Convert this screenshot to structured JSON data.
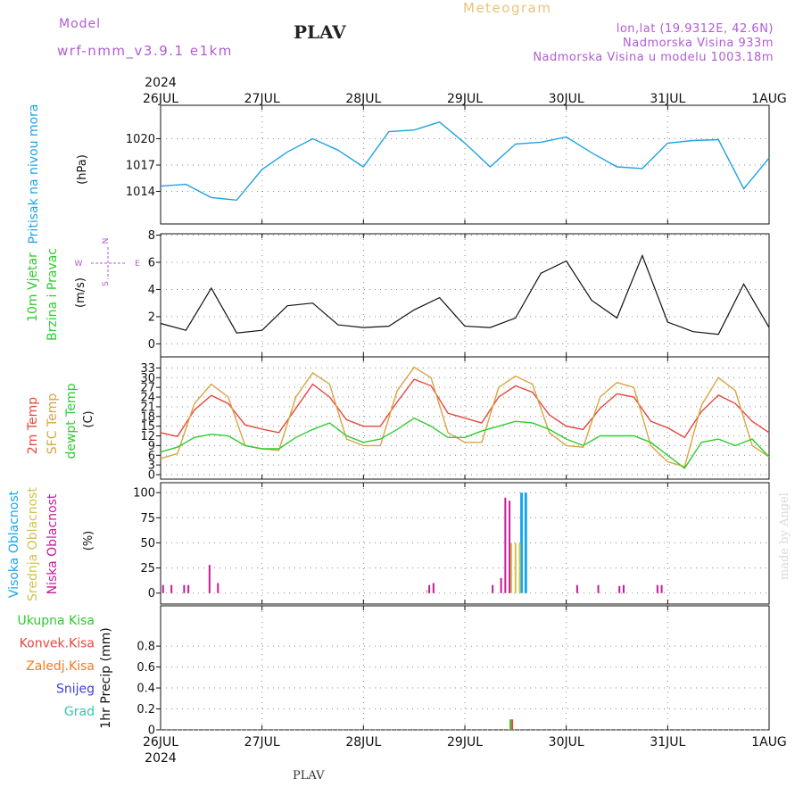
{
  "header": {
    "model_label": "Model",
    "model_name": "wrf-nmm_v3.9.1  e1km",
    "station": "PLAV",
    "title": "Meteogram",
    "location": "lon,lat (19.9312E, 42.6N)",
    "elevation": "Nadmorska Visina 933m",
    "model_elevation": "Nadmorska Visina u modelu 1003.18m"
  },
  "footer": {
    "station": "PLAV",
    "credit": "made by Angel"
  },
  "colors": {
    "pressure": "#1fa3e0",
    "temp2m": "#e8463c",
    "sfc_temp": "#d9a441",
    "dewpoint": "#2ecc2e",
    "high_cloud": "#1aa6ea",
    "mid_cloud": "#cfc54a",
    "low_cloud": "#c8199a",
    "total_precip": "#2ecc2e",
    "conv_precip": "#e8463c",
    "frozen_precip": "#f07a2a",
    "snow": "#3d3dd8",
    "hail": "#2ec8b0",
    "wind_speed": "#111111",
    "accent": "#b25bd6"
  },
  "chart_data": {
    "type": "line",
    "x_axis": {
      "start": "2024-07-26T00",
      "end": "2024-08-01T00",
      "ticks": [
        "26JUL",
        "27JUL",
        "28JUL",
        "29JUL",
        "30JUL",
        "31JUL",
        "1AUG"
      ],
      "year_label": "2024"
    },
    "panels": [
      {
        "name": "pressure",
        "ylabel": [
          "Pritisak na nivou mora",
          "(hPa)"
        ],
        "ylim": [
          1011,
          1023
        ],
        "yticks": [
          1014,
          1017,
          1020
        ],
        "grid": true,
        "series": [
          {
            "name": "Pritisak na nivou mora",
            "color": "#1fa3e0",
            "x": [
              "2024-07-26T00",
              "2024-07-26T06",
              "2024-07-26T12",
              "2024-07-26T18",
              "2024-07-27T00",
              "2024-07-27T06",
              "2024-07-27T12",
              "2024-07-27T18",
              "2024-07-28T00",
              "2024-07-28T06",
              "2024-07-28T12",
              "2024-07-28T18",
              "2024-07-29T00",
              "2024-07-29T06",
              "2024-07-29T12",
              "2024-07-29T18",
              "2024-07-30T00",
              "2024-07-30T06",
              "2024-07-30T12",
              "2024-07-30T18",
              "2024-07-31T00",
              "2024-07-31T06",
              "2024-07-31T12",
              "2024-07-31T18",
              "2024-08-01T00"
            ],
            "values": [
              1014.6,
              1014.8,
              1013.3,
              1013.0,
              1016.5,
              1018.5,
              1020.0,
              1018.7,
              1016.8,
              1020.8,
              1021.0,
              1021.9,
              1019.5,
              1016.8,
              1019.4,
              1019.6,
              1020.2,
              1018.4,
              1016.8,
              1016.6,
              1019.5,
              1019.8,
              1019.9,
              1014.3,
              1017.8
            ]
          }
        ]
      },
      {
        "name": "wind",
        "ylabel": [
          "10m Vjetar",
          "Brzina i Pravac",
          "(m/s)"
        ],
        "compass": [
          "N",
          "W",
          "E",
          "S"
        ],
        "ylim": [
          -0.5,
          8.1
        ],
        "yticks": [
          0,
          2,
          4,
          6,
          8
        ],
        "grid": true,
        "series": [
          {
            "name": "Brzina",
            "color": "#111111",
            "x": [
              "2024-07-26T00",
              "2024-07-26T06",
              "2024-07-26T12",
              "2024-07-26T18",
              "2024-07-27T00",
              "2024-07-27T06",
              "2024-07-27T12",
              "2024-07-27T18",
              "2024-07-28T00",
              "2024-07-28T06",
              "2024-07-28T12",
              "2024-07-28T18",
              "2024-07-29T00",
              "2024-07-29T06",
              "2024-07-29T12",
              "2024-07-29T18",
              "2024-07-30T00",
              "2024-07-30T06",
              "2024-07-30T12",
              "2024-07-30T18",
              "2024-07-31T00",
              "2024-07-31T06",
              "2024-07-31T12",
              "2024-07-31T18",
              "2024-08-01T00"
            ],
            "values": [
              1.5,
              1.0,
              4.1,
              0.8,
              1.0,
              2.8,
              3.0,
              1.4,
              1.2,
              1.3,
              2.5,
              3.4,
              1.3,
              1.2,
              1.9,
              5.2,
              6.1,
              3.2,
              1.9,
              6.5,
              1.6,
              0.9,
              0.7,
              4.4,
              1.2
            ]
          }
        ]
      },
      {
        "name": "temperature",
        "ylabel": [
          "2m Temp",
          "SFC Temp",
          "dewpt Temp",
          "(C)"
        ],
        "ylim": [
          0,
          34.5
        ],
        "yticks": [
          0,
          3,
          6,
          9,
          12,
          15,
          18,
          21,
          24,
          27,
          30,
          33
        ],
        "grid": true,
        "series": [
          {
            "name": "2m Temp",
            "color": "#e8463c",
            "x": [
              "2024-07-26T00",
              "2024-07-26T04",
              "2024-07-26T08",
              "2024-07-26T12",
              "2024-07-26T16",
              "2024-07-26T20",
              "2024-07-27T00",
              "2024-07-27T04",
              "2024-07-27T08",
              "2024-07-27T12",
              "2024-07-27T16",
              "2024-07-27T20",
              "2024-07-28T00",
              "2024-07-28T04",
              "2024-07-28T08",
              "2024-07-28T12",
              "2024-07-28T16",
              "2024-07-28T20",
              "2024-07-29T00",
              "2024-07-29T04",
              "2024-07-29T08",
              "2024-07-29T12",
              "2024-07-29T16",
              "2024-07-29T20",
              "2024-07-30T00",
              "2024-07-30T04",
              "2024-07-30T08",
              "2024-07-30T12",
              "2024-07-30T16",
              "2024-07-30T20",
              "2024-07-31T00",
              "2024-07-31T04",
              "2024-07-31T08",
              "2024-07-31T12",
              "2024-07-31T16",
              "2024-07-31T20",
              "2024-08-01T00"
            ],
            "values": [
              13.0,
              11.8,
              20.0,
              24.5,
              22.0,
              15.4,
              14.1,
              13.0,
              20.5,
              28.0,
              24.0,
              17.0,
              15.0,
              15.0,
              22.5,
              29.5,
              27.5,
              19.0,
              17.5,
              16.0,
              24.0,
              27.5,
              25.5,
              18.5,
              15.0,
              14.0,
              20.5,
              25.0,
              24.0,
              16.5,
              14.5,
              11.5,
              19.5,
              24.6,
              22.0,
              16.5,
              13.0
            ]
          },
          {
            "name": "SFC Temp",
            "color": "#d9a441",
            "x": [
              "2024-07-26T00",
              "2024-07-26T04",
              "2024-07-26T08",
              "2024-07-26T12",
              "2024-07-26T16",
              "2024-07-26T20",
              "2024-07-27T00",
              "2024-07-27T04",
              "2024-07-27T08",
              "2024-07-27T12",
              "2024-07-27T16",
              "2024-07-27T20",
              "2024-07-28T00",
              "2024-07-28T04",
              "2024-07-28T08",
              "2024-07-28T12",
              "2024-07-28T16",
              "2024-07-28T20",
              "2024-07-29T00",
              "2024-07-29T04",
              "2024-07-29T08",
              "2024-07-29T12",
              "2024-07-29T16",
              "2024-07-29T20",
              "2024-07-30T00",
              "2024-07-30T04",
              "2024-07-30T08",
              "2024-07-30T12",
              "2024-07-30T16",
              "2024-07-30T20",
              "2024-07-31T00",
              "2024-07-31T04",
              "2024-07-31T08",
              "2024-07-31T12",
              "2024-07-31T16",
              "2024-07-31T20",
              "2024-08-01T00"
            ],
            "values": [
              5.0,
              6.5,
              22.0,
              28.0,
              24.0,
              9.0,
              8.0,
              7.5,
              24.0,
              31.5,
              28.0,
              11.0,
              9.0,
              9.0,
              26.0,
              33.2,
              30.0,
              13.0,
              10.0,
              10.0,
              27.0,
              30.5,
              28.0,
              13.0,
              9.0,
              8.5,
              24.0,
              28.5,
              27.0,
              9.0,
              4.0,
              2.5,
              21.5,
              30.0,
              26.0,
              9.0,
              5.5
            ]
          },
          {
            "name": "dewpt Temp",
            "color": "#2ecc2e",
            "x": [
              "2024-07-26T00",
              "2024-07-26T04",
              "2024-07-26T08",
              "2024-07-26T12",
              "2024-07-26T16",
              "2024-07-26T20",
              "2024-07-27T00",
              "2024-07-27T04",
              "2024-07-27T08",
              "2024-07-27T12",
              "2024-07-27T16",
              "2024-07-27T20",
              "2024-07-28T00",
              "2024-07-28T04",
              "2024-07-28T08",
              "2024-07-28T12",
              "2024-07-28T16",
              "2024-07-28T20",
              "2024-07-29T00",
              "2024-07-29T04",
              "2024-07-29T08",
              "2024-07-29T12",
              "2024-07-29T16",
              "2024-07-29T20",
              "2024-07-30T00",
              "2024-07-30T04",
              "2024-07-30T08",
              "2024-07-30T12",
              "2024-07-30T16",
              "2024-07-30T20",
              "2024-07-31T00",
              "2024-07-31T04",
              "2024-07-31T08",
              "2024-07-31T12",
              "2024-07-31T16",
              "2024-07-31T20",
              "2024-08-01T00"
            ],
            "values": [
              7.0,
              8.5,
              11.5,
              12.5,
              12.0,
              9.0,
              8.0,
              8.0,
              11.5,
              14.0,
              16.0,
              12.0,
              10.0,
              11.0,
              14.0,
              17.5,
              15.0,
              11.5,
              11.5,
              13.5,
              15.0,
              16.5,
              16.0,
              14.0,
              11.0,
              9.0,
              12.0,
              12.0,
              12.0,
              10.0,
              6.0,
              2.0,
              10.0,
              11.0,
              9.0,
              11.0,
              5.5
            ]
          }
        ]
      },
      {
        "name": "cloud",
        "type": "bar",
        "ylabel": [
          "Visoka Oblacnost",
          "Srednja Oblacnost",
          "Niska Oblacnost",
          "(%)"
        ],
        "ylim": [
          -2,
          101
        ],
        "yticks": [
          0,
          25,
          50,
          75,
          100
        ],
        "grid": true,
        "series": [
          {
            "name": "Visoka Oblacnost",
            "color": "#1aa6ea",
            "x": [
              "2024-07-29T13",
              "2024-07-29T14"
            ],
            "values": [
              100,
              100
            ]
          },
          {
            "name": "Srednja Oblacnost",
            "color": "#cfc54a",
            "x": [
              "2024-07-28T15",
              "2024-07-29T11",
              "2024-07-29T12",
              "2024-07-29T13"
            ],
            "values": [
              3,
              50,
              50,
              50
            ]
          },
          {
            "name": "Niska Oblacnost",
            "color": "#c8199a",
            "x": [
              "2024-07-26T01",
              "2024-07-26T03",
              "2024-07-26T06",
              "2024-07-26T07",
              "2024-07-26T12",
              "2024-07-26T14",
              "2024-07-28T16",
              "2024-07-28T17",
              "2024-07-29T07",
              "2024-07-29T09",
              "2024-07-29T10",
              "2024-07-29T11",
              "2024-07-30T03",
              "2024-07-30T08",
              "2024-07-30T13",
              "2024-07-30T14",
              "2024-07-30T22",
              "2024-07-30T23"
            ],
            "values": [
              8,
              8,
              8,
              8,
              28,
              10,
              8,
              10,
              8,
              15,
              95,
              92,
              8,
              8,
              7,
              8,
              8,
              8
            ]
          }
        ]
      },
      {
        "name": "precip",
        "type": "bar",
        "ylabel": [
          "1hr Precip (mm)"
        ],
        "legend": [
          "Ukupna Kisa",
          "Konvek.Kisa",
          "Zaledj.Kisa",
          "Snijeg",
          "Grad"
        ],
        "ylim": [
          0,
          0.98
        ],
        "yticks": [
          0,
          0.2,
          0.4,
          0.6,
          0.8
        ],
        "grid": true,
        "series": [
          {
            "name": "Ukupna Kisa",
            "color": "#2ecc2e",
            "x": [
              "2024-07-29T11"
            ],
            "values": [
              0.1
            ]
          },
          {
            "name": "Konvek.Kisa",
            "color": "#e8463c",
            "x": [
              "2024-07-29T11"
            ],
            "values": [
              0.1
            ]
          }
        ]
      }
    ]
  }
}
